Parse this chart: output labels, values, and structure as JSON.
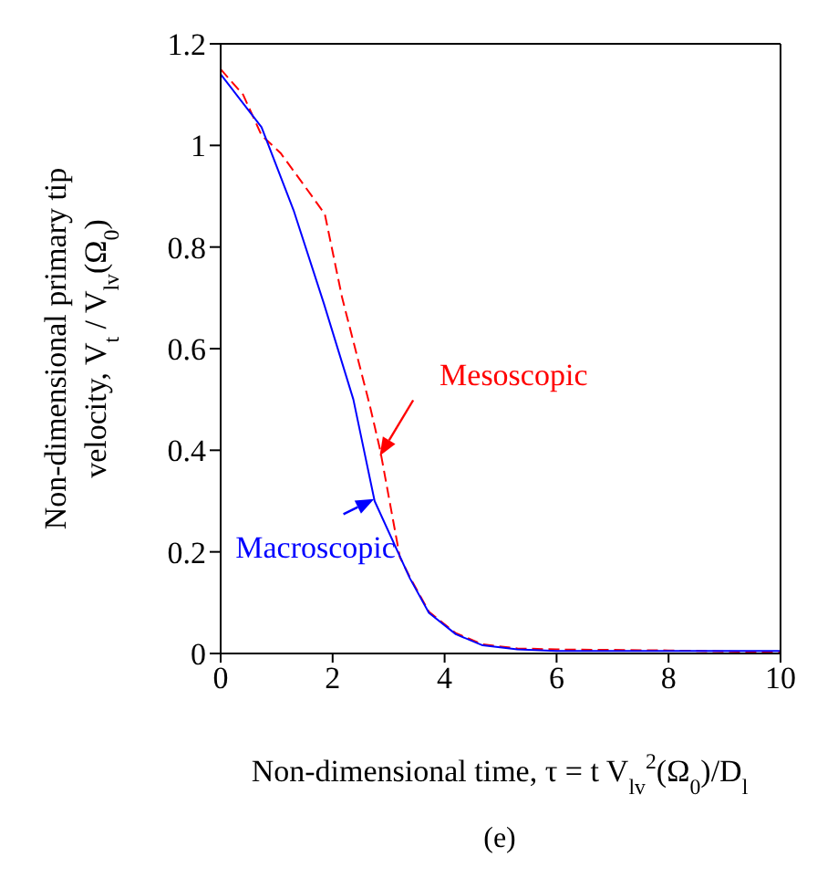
{
  "chart_data": {
    "type": "line",
    "xlabel": "Non-dimensional time, τ = t V$_{lv}$$^{2}$(Ω$_{0}$)/D$_{l}$",
    "ylabel": "Non-dimensional primary tip velocity, V$_{t}$ / V$_{lv}$(Ω$_{0}$)",
    "annotations": [
      "(e)"
    ],
    "xlim": [
      0,
      10
    ],
    "ylim": [
      0,
      1.2
    ],
    "xticks": [
      0,
      2,
      4,
      6,
      8,
      10
    ],
    "yticks": [
      0,
      0.2,
      0.4,
      0.6,
      0.8,
      1,
      1.2
    ],
    "series": [
      {
        "name": "Mesoscopic",
        "color": "#ff0000",
        "line_style": "dashed",
        "x": [
          0,
          0.4,
          0.73,
          1.07,
          1.5,
          1.86,
          2.17,
          2.66,
          2.85,
          3.2,
          3.38,
          3.72,
          4.2,
          4.68,
          5.3,
          6,
          8,
          10
        ],
        "values": [
          1.15,
          1.1,
          1.02,
          0.985,
          0.92,
          0.865,
          0.7,
          0.49,
          0.4,
          0.19,
          0.15,
          0.082,
          0.04,
          0.018,
          0.01,
          0.008,
          0.006,
          0.002
        ]
      },
      {
        "name": "Macroscopic",
        "color": "#0000ff",
        "line_style": "solid",
        "x": [
          0,
          0,
          0.73,
          1.31,
          1.84,
          2.37,
          2.75,
          3.38,
          3.72,
          4.2,
          4.68,
          5.3,
          6,
          8,
          10
        ],
        "values": [
          1.0,
          1.14,
          1.036,
          0.87,
          0.69,
          0.5,
          0.3,
          0.148,
          0.08,
          0.038,
          0.016,
          0.008,
          0.005,
          0.005,
          0.005
        ]
      }
    ]
  }
}
